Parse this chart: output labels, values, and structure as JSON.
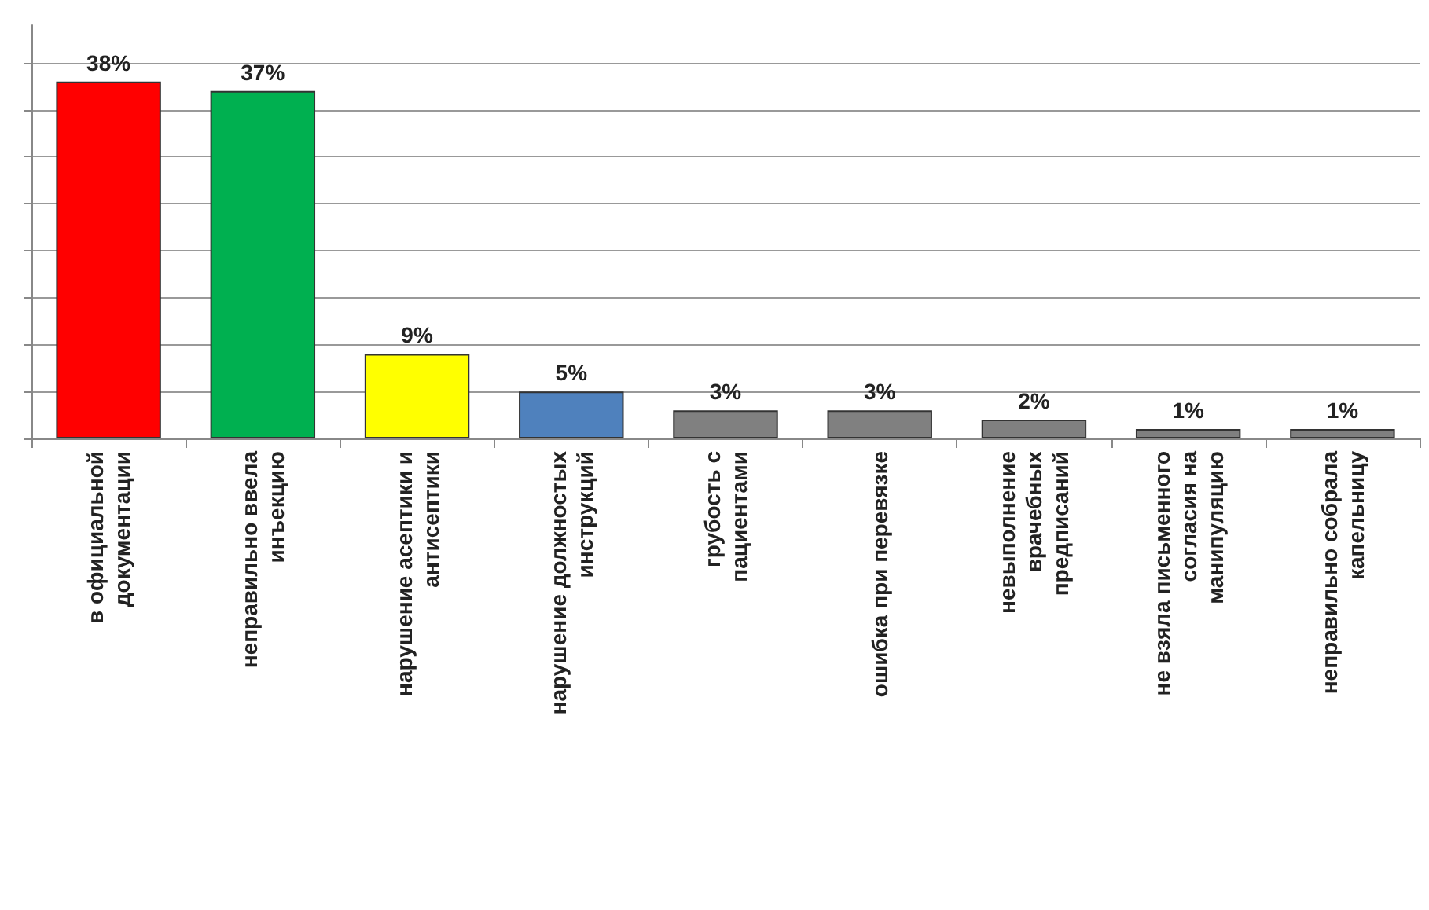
{
  "chart_data": {
    "type": "bar",
    "categories": [
      "в официальной документации",
      "неправильно ввела инъекцию",
      "нарушение асептики и антисептики",
      "нарушение должностых инструкций",
      "грубость с пациентами",
      "ошибка при перевязке",
      "невыполнение врачебных предписаний",
      "не взяла письменного согласия на манипуляцию",
      "неправильно собрала капельницу"
    ],
    "values": [
      38,
      37,
      9,
      5,
      3,
      3,
      2,
      1,
      1
    ],
    "colors": [
      "#ff0000",
      "#00b050",
      "#ffff00",
      "#4f81bd",
      "#808080",
      "#808080",
      "#808080",
      "#808080",
      "#808080"
    ],
    "value_labels": [
      "38%",
      "37%",
      "9%",
      "5%",
      "3%",
      "3%",
      "2%",
      "1%",
      "1%"
    ],
    "ylim": [
      0,
      44
    ],
    "yticks": [
      {
        "value": 0,
        "label": null
      },
      {
        "value": 5,
        "label": null
      },
      {
        "value": 10,
        "label": null
      },
      {
        "value": 15,
        "label": null
      },
      {
        "value": 20,
        "label": null
      },
      {
        "value": 25,
        "label": null
      },
      {
        "value": 30,
        "label": null
      },
      {
        "value": 35,
        "label": null
      },
      {
        "value": 40,
        "label": null
      }
    ],
    "grid": "y",
    "tick_labels": "x"
  }
}
